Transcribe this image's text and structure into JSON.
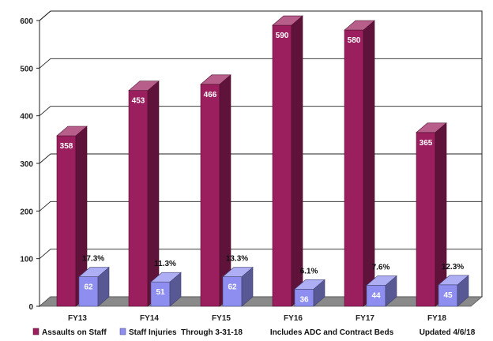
{
  "chart_data": {
    "type": "bar",
    "categories": [
      "FY13",
      "FY14",
      "FY15",
      "FY16",
      "FY17",
      "FY18"
    ],
    "series": [
      {
        "name": "Assaults on Staff",
        "values": [
          358,
          453,
          466,
          590,
          580,
          365
        ],
        "color": "#9b1f5e"
      },
      {
        "name": "Staff Injuries",
        "values": [
          62,
          51,
          62,
          36,
          44,
          45
        ],
        "color": "#8e8ef0"
      }
    ],
    "annotations": [
      "17.3%",
      "11.3%",
      "13.3%",
      "6.1%",
      "7.6%",
      "12.3%"
    ],
    "legend_notes": [
      "Through 3-31-18",
      "Includes ADC and Contract Beds",
      "Updated 4/6/18"
    ],
    "ylim": [
      0,
      600
    ],
    "yticks": [
      0,
      100,
      200,
      300,
      400,
      500,
      600
    ],
    "grid": true,
    "legend_position": "bottom",
    "three_d": true
  }
}
